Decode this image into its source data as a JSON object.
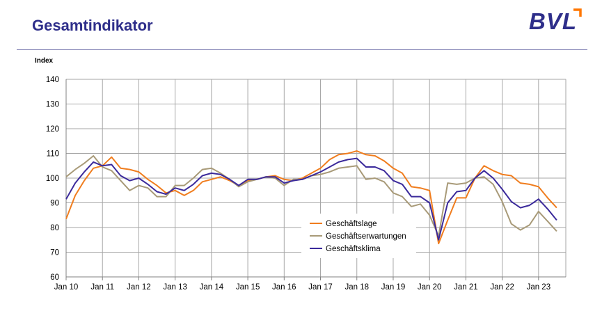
{
  "header": {
    "title": "Gesamtindikator",
    "logo": "BVL"
  },
  "colors": {
    "title": "#2e2e8a",
    "logo_accent": "#ff7700",
    "rule": "#7a7ab0",
    "grid": "#a6a6a6"
  },
  "chart_data": {
    "type": "line",
    "ylabel": "Index",
    "xlabel": "",
    "ylim": [
      60,
      140
    ],
    "yticks": [
      60,
      70,
      80,
      90,
      100,
      110,
      120,
      130,
      140
    ],
    "xticks": [
      "Jan 10",
      "Jan 11",
      "Jan 12",
      "Jan 13",
      "Jan 14",
      "Jan 15",
      "Jan 16",
      "Jan 17",
      "Jan 18",
      "Jan 19",
      "Jan 20",
      "Jan 21",
      "Jan 22",
      "Jan 23"
    ],
    "x_range": [
      "2010-01",
      "2023-10"
    ],
    "grid": true,
    "legend_position": "bottom-center",
    "series": [
      {
        "name": "Geschäftslage",
        "color": "#f07d1e",
        "points": [
          [
            "2010-01",
            83.5
          ],
          [
            "2010-04",
            93
          ],
          [
            "2010-07",
            99
          ],
          [
            "2010-10",
            104
          ],
          [
            "2011-01",
            105
          ],
          [
            "2011-04",
            108.5
          ],
          [
            "2011-07",
            104
          ],
          [
            "2011-10",
            103.5
          ],
          [
            "2012-01",
            102.5
          ],
          [
            "2012-04",
            99.5
          ],
          [
            "2012-07",
            97
          ],
          [
            "2012-10",
            94
          ],
          [
            "2013-01",
            95
          ],
          [
            "2013-04",
            93
          ],
          [
            "2013-07",
            95
          ],
          [
            "2013-10",
            98.5
          ],
          [
            "2014-01",
            99.5
          ],
          [
            "2014-04",
            100.5
          ],
          [
            "2014-07",
            99
          ],
          [
            "2014-10",
            97
          ],
          [
            "2015-01",
            99
          ],
          [
            "2015-04",
            99.5
          ],
          [
            "2015-07",
            100.5
          ],
          [
            "2015-10",
            101
          ],
          [
            "2016-01",
            99.5
          ],
          [
            "2016-04",
            99
          ],
          [
            "2016-07",
            100
          ],
          [
            "2016-10",
            102
          ],
          [
            "2017-01",
            104
          ],
          [
            "2017-04",
            107.5
          ],
          [
            "2017-07",
            109.5
          ],
          [
            "2017-10",
            110
          ],
          [
            "2018-01",
            111
          ],
          [
            "2018-04",
            109.5
          ],
          [
            "2018-07",
            109
          ],
          [
            "2018-10",
            107
          ],
          [
            "2019-01",
            104
          ],
          [
            "2019-04",
            102
          ],
          [
            "2019-07",
            96.5
          ],
          [
            "2019-10",
            96
          ],
          [
            "2020-01",
            95
          ],
          [
            "2020-04",
            73.5
          ],
          [
            "2020-07",
            83
          ],
          [
            "2020-10",
            92
          ],
          [
            "2021-01",
            92
          ],
          [
            "2021-04",
            100
          ],
          [
            "2021-07",
            105
          ],
          [
            "2021-10",
            103
          ],
          [
            "2022-01",
            101.5
          ],
          [
            "2022-04",
            101
          ],
          [
            "2022-07",
            98
          ],
          [
            "2022-10",
            97.5
          ],
          [
            "2023-01",
            96.5
          ],
          [
            "2023-04",
            92
          ],
          [
            "2023-07",
            88
          ]
        ]
      },
      {
        "name": "Geschäftserwartungen",
        "color": "#a89a78",
        "points": [
          [
            "2010-01",
            100.5
          ],
          [
            "2010-04",
            103.5
          ],
          [
            "2010-07",
            106
          ],
          [
            "2010-10",
            109
          ],
          [
            "2011-01",
            104.5
          ],
          [
            "2011-04",
            103
          ],
          [
            "2011-07",
            99
          ],
          [
            "2011-10",
            95
          ],
          [
            "2012-01",
            97
          ],
          [
            "2012-04",
            96
          ],
          [
            "2012-07",
            92.5
          ],
          [
            "2012-10",
            92.5
          ],
          [
            "2013-01",
            97
          ],
          [
            "2013-04",
            97
          ],
          [
            "2013-07",
            100
          ],
          [
            "2013-10",
            103.5
          ],
          [
            "2014-01",
            104
          ],
          [
            "2014-04",
            102
          ],
          [
            "2014-07",
            99.5
          ],
          [
            "2014-10",
            96.5
          ],
          [
            "2015-01",
            98.5
          ],
          [
            "2015-04",
            99.5
          ],
          [
            "2015-07",
            100.5
          ],
          [
            "2015-10",
            100
          ],
          [
            "2016-01",
            97
          ],
          [
            "2016-04",
            99.5
          ],
          [
            "2016-07",
            99.5
          ],
          [
            "2016-10",
            101
          ],
          [
            "2017-01",
            101.5
          ],
          [
            "2017-04",
            102.5
          ],
          [
            "2017-07",
            104
          ],
          [
            "2017-10",
            104.5
          ],
          [
            "2018-01",
            105
          ],
          [
            "2018-04",
            99.5
          ],
          [
            "2018-07",
            100
          ],
          [
            "2018-10",
            98.5
          ],
          [
            "2019-01",
            94
          ],
          [
            "2019-04",
            92.5
          ],
          [
            "2019-07",
            88.5
          ],
          [
            "2019-10",
            89.5
          ],
          [
            "2020-01",
            85
          ],
          [
            "2020-04",
            76.5
          ],
          [
            "2020-07",
            98
          ],
          [
            "2020-10",
            97.5
          ],
          [
            "2021-01",
            98
          ],
          [
            "2021-04",
            100
          ],
          [
            "2021-07",
            100.5
          ],
          [
            "2021-10",
            97.5
          ],
          [
            "2022-01",
            90.5
          ],
          [
            "2022-04",
            81.5
          ],
          [
            "2022-07",
            79
          ],
          [
            "2022-10",
            81
          ],
          [
            "2023-01",
            86.5
          ],
          [
            "2023-04",
            82.5
          ],
          [
            "2023-07",
            78.5
          ]
        ]
      },
      {
        "name": "Geschäftsklima",
        "color": "#3b2a9b",
        "points": [
          [
            "2010-01",
            91.5
          ],
          [
            "2010-04",
            98
          ],
          [
            "2010-07",
            102.5
          ],
          [
            "2010-10",
            106.5
          ],
          [
            "2011-01",
            105
          ],
          [
            "2011-04",
            105.5
          ],
          [
            "2011-07",
            101
          ],
          [
            "2011-10",
            99
          ],
          [
            "2012-01",
            100
          ],
          [
            "2012-04",
            97.5
          ],
          [
            "2012-07",
            94.5
          ],
          [
            "2012-10",
            93.5
          ],
          [
            "2013-01",
            96
          ],
          [
            "2013-04",
            95
          ],
          [
            "2013-07",
            97.5
          ],
          [
            "2013-10",
            101
          ],
          [
            "2014-01",
            102
          ],
          [
            "2014-04",
            101.5
          ],
          [
            "2014-07",
            99.5
          ],
          [
            "2014-10",
            97
          ],
          [
            "2015-01",
            99.5
          ],
          [
            "2015-04",
            99.5
          ],
          [
            "2015-07",
            100.5
          ],
          [
            "2015-10",
            100.5
          ],
          [
            "2016-01",
            98
          ],
          [
            "2016-04",
            99
          ],
          [
            "2016-07",
            99.5
          ],
          [
            "2016-10",
            101
          ],
          [
            "2017-01",
            102.5
          ],
          [
            "2017-04",
            104.5
          ],
          [
            "2017-07",
            106.5
          ],
          [
            "2017-10",
            107.5
          ],
          [
            "2018-01",
            108
          ],
          [
            "2018-04",
            104.5
          ],
          [
            "2018-07",
            104.5
          ],
          [
            "2018-10",
            103
          ],
          [
            "2019-01",
            99
          ],
          [
            "2019-04",
            97.5
          ],
          [
            "2019-07",
            92.5
          ],
          [
            "2019-10",
            92.5
          ],
          [
            "2020-01",
            90
          ],
          [
            "2020-04",
            75
          ],
          [
            "2020-07",
            90
          ],
          [
            "2020-10",
            94.5
          ],
          [
            "2021-01",
            95
          ],
          [
            "2021-04",
            100
          ],
          [
            "2021-07",
            103
          ],
          [
            "2021-10",
            100
          ],
          [
            "2022-01",
            95.5
          ],
          [
            "2022-04",
            90.5
          ],
          [
            "2022-07",
            88
          ],
          [
            "2022-10",
            89
          ],
          [
            "2023-01",
            91.5
          ],
          [
            "2023-04",
            87.5
          ],
          [
            "2023-07",
            83
          ]
        ]
      }
    ]
  }
}
